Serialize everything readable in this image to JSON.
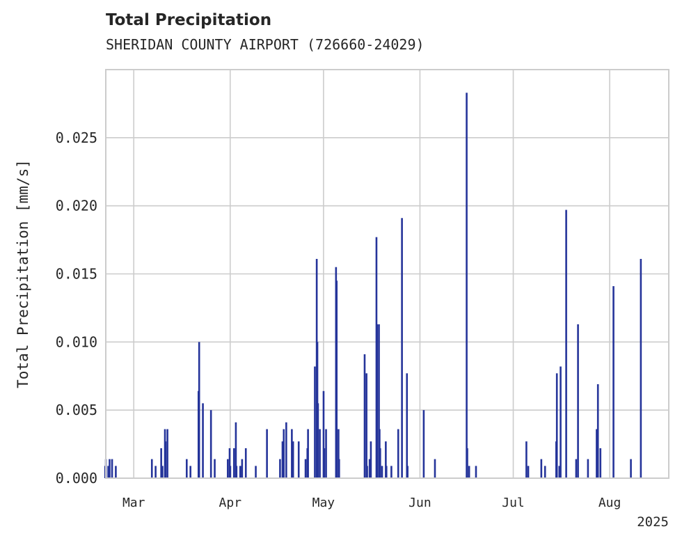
{
  "chart_data": {
    "type": "bar",
    "title": "Total Precipitation",
    "subtitle": "SHERIDAN COUNTY AIRPORT (726660-24029)",
    "ylabel": "Total Precipitation [mm/s]",
    "xlabel": "",
    "year_label": "2025",
    "ylim": [
      0,
      0.03
    ],
    "xlim": [
      "2025-02-20",
      "2025-08-20"
    ],
    "grid": true,
    "y_ticks": [
      0.0,
      0.005,
      0.01,
      0.015,
      0.02,
      0.025
    ],
    "y_tick_labels": [
      "0.000",
      "0.005",
      "0.010",
      "0.015",
      "0.020",
      "0.025"
    ],
    "x_ticks": [
      "2025-03-01",
      "2025-04-01",
      "2025-05-01",
      "2025-06-01",
      "2025-07-01",
      "2025-08-01"
    ],
    "x_tick_labels": [
      "Mar",
      "Apr",
      "May",
      "Jun",
      "Jul",
      "Aug"
    ],
    "bar_color": "#25349a",
    "series": [
      {
        "points": [
          [
            "2025-02-20",
            0.0009
          ],
          [
            "2025-02-20",
            0.0014
          ],
          [
            "2025-02-21",
            0.0014
          ],
          [
            "2025-02-21",
            0.0009
          ],
          [
            "2025-02-22",
            0.0014
          ],
          [
            "2025-02-23",
            0.0009
          ],
          [
            "2025-03-07",
            0.0014
          ],
          [
            "2025-03-08",
            0.0009
          ],
          [
            "2025-03-10",
            0.0009
          ],
          [
            "2025-03-10",
            0.0022
          ],
          [
            "2025-03-11",
            0.0036
          ],
          [
            "2025-03-11",
            0.0027
          ],
          [
            "2025-03-12",
            0.0036
          ],
          [
            "2025-03-18",
            0.0014
          ],
          [
            "2025-03-19",
            0.0009
          ],
          [
            "2025-03-22",
            0.0064
          ],
          [
            "2025-03-22",
            0.01
          ],
          [
            "2025-03-23",
            0.0055
          ],
          [
            "2025-03-26",
            0.005
          ],
          [
            "2025-03-27",
            0.0014
          ],
          [
            "2025-03-31",
            0.0014
          ],
          [
            "2025-04-01",
            0.0022
          ],
          [
            "2025-04-01",
            0.0009
          ],
          [
            "2025-04-02",
            0.0022
          ],
          [
            "2025-04-03",
            0.0041
          ],
          [
            "2025-04-03",
            0.0009
          ],
          [
            "2025-04-04",
            0.0009
          ],
          [
            "2025-04-05",
            0.0014
          ],
          [
            "2025-04-06",
            0.0022
          ],
          [
            "2025-04-09",
            0.0009
          ],
          [
            "2025-04-13",
            0.0036
          ],
          [
            "2025-04-17",
            0.0014
          ],
          [
            "2025-04-18",
            0.0036
          ],
          [
            "2025-04-18",
            0.0027
          ],
          [
            "2025-04-19",
            0.0041
          ],
          [
            "2025-04-21",
            0.0027
          ],
          [
            "2025-04-21",
            0.0036
          ],
          [
            "2025-04-23",
            0.0027
          ],
          [
            "2025-04-25",
            0.0014
          ],
          [
            "2025-04-26",
            0.0022
          ],
          [
            "2025-04-26",
            0.0036
          ],
          [
            "2025-04-28",
            0.0082
          ],
          [
            "2025-04-29",
            0.0161
          ],
          [
            "2025-04-29",
            0.01
          ],
          [
            "2025-04-29",
            0.0055
          ],
          [
            "2025-04-30",
            0.0036
          ],
          [
            "2025-05-01",
            0.0064
          ],
          [
            "2025-05-01",
            0.0022
          ],
          [
            "2025-05-02",
            0.0036
          ],
          [
            "2025-05-05",
            0.0155
          ],
          [
            "2025-05-05",
            0.0145
          ],
          [
            "2025-05-06",
            0.0036
          ],
          [
            "2025-05-06",
            0.0014
          ],
          [
            "2025-05-14",
            0.0091
          ],
          [
            "2025-05-15",
            0.0077
          ],
          [
            "2025-05-15",
            0.0009
          ],
          [
            "2025-05-16",
            0.0027
          ],
          [
            "2025-05-16",
            0.0014
          ],
          [
            "2025-05-18",
            0.0177
          ],
          [
            "2025-05-18",
            0.0113
          ],
          [
            "2025-05-19",
            0.0113
          ],
          [
            "2025-05-19",
            0.0036
          ],
          [
            "2025-05-19",
            0.0022
          ],
          [
            "2025-05-20",
            0.0009
          ],
          [
            "2025-05-21",
            0.0027
          ],
          [
            "2025-05-21",
            0.0009
          ],
          [
            "2025-05-23",
            0.0009
          ],
          [
            "2025-05-25",
            0.0036
          ],
          [
            "2025-05-26",
            0.0191
          ],
          [
            "2025-05-28",
            0.0077
          ],
          [
            "2025-05-28",
            0.0009
          ],
          [
            "2025-06-02",
            0.005
          ],
          [
            "2025-06-06",
            0.0014
          ],
          [
            "2025-06-16",
            0.0283
          ],
          [
            "2025-06-16",
            0.0022
          ],
          [
            "2025-06-17",
            0.0009
          ],
          [
            "2025-06-19",
            0.0009
          ],
          [
            "2025-07-05",
            0.0027
          ],
          [
            "2025-07-06",
            0.0009
          ],
          [
            "2025-07-10",
            0.0014
          ],
          [
            "2025-07-11",
            0.0009
          ],
          [
            "2025-07-15",
            0.0027
          ],
          [
            "2025-07-15",
            0.0077
          ],
          [
            "2025-07-16",
            0.0082
          ],
          [
            "2025-07-16",
            0.0009
          ],
          [
            "2025-07-18",
            0.0197
          ],
          [
            "2025-07-21",
            0.0014
          ],
          [
            "2025-07-22",
            0.0113
          ],
          [
            "2025-07-25",
            0.0014
          ],
          [
            "2025-07-28",
            0.0069
          ],
          [
            "2025-07-28",
            0.0036
          ],
          [
            "2025-07-29",
            0.0022
          ],
          [
            "2025-08-02",
            0.0141
          ],
          [
            "2025-08-08",
            0.0014
          ],
          [
            "2025-08-11",
            0.0161
          ]
        ]
      }
    ]
  }
}
